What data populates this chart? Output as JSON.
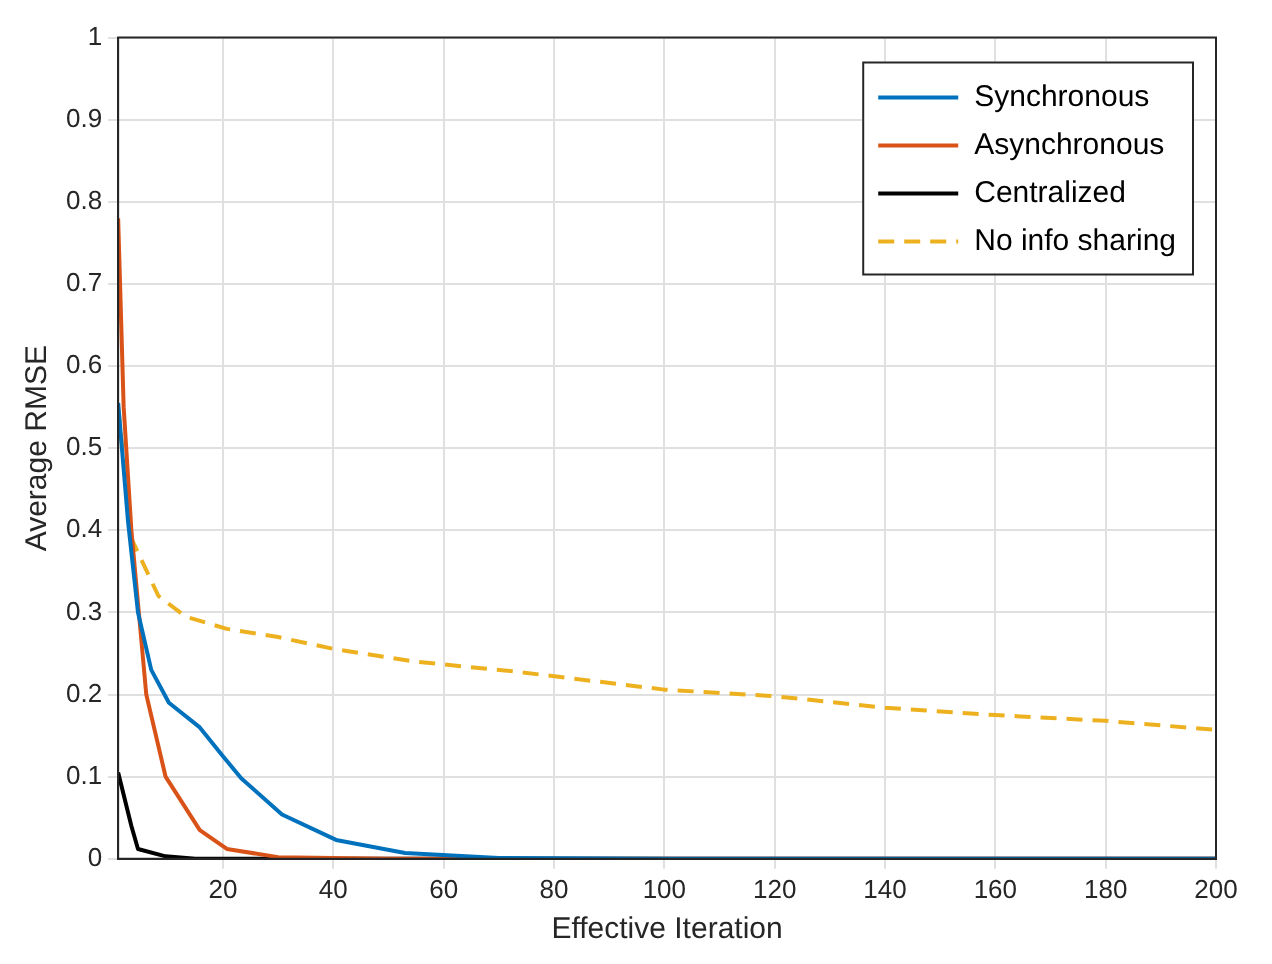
{
  "chart_data": {
    "type": "line",
    "xlabel": "Effective Iteration",
    "ylabel": "Average RMSE",
    "xlim": [
      1,
      200
    ],
    "ylim": [
      0,
      1
    ],
    "xticks": [
      20,
      40,
      60,
      80,
      100,
      120,
      140,
      160,
      180,
      200
    ],
    "yticks": [
      0,
      0.1,
      0.2,
      0.3,
      0.4,
      0.5,
      0.6,
      0.7,
      0.8,
      0.9,
      1
    ],
    "grid": true,
    "legend": "top right",
    "marker": "none",
    "series": [
      {
        "name": "Synchronous",
        "color": "#0072bd",
        "line_style": "solid",
        "x": [
          1,
          2.8,
          4.6,
          7,
          10.2,
          15.8,
          20,
          23.3,
          30.7,
          40.5,
          53,
          70,
          100,
          150,
          200
        ],
        "values": [
          0.555,
          0.41,
          0.3,
          0.23,
          0.19,
          0.16,
          0.125,
          0.098,
          0.054,
          0.023,
          0.007,
          0.001,
          0,
          0,
          0
        ]
      },
      {
        "name": "Asynchronous",
        "color": "#d95319",
        "line_style": "solid",
        "x": [
          1,
          2,
          3.4,
          6.1,
          9.6,
          15.8,
          20.7,
          30,
          50,
          100,
          200
        ],
        "values": [
          0.78,
          0.55,
          0.4,
          0.2,
          0.1,
          0.035,
          0.012,
          0.002,
          0,
          0,
          0
        ]
      },
      {
        "name": "Centralized",
        "color": "#000000",
        "line_style": "solid",
        "x": [
          1,
          3.4,
          4.6,
          9.6,
          15,
          50,
          100,
          200
        ],
        "values": [
          0.105,
          0.04,
          0.012,
          0.003,
          0,
          0,
          0,
          0
        ]
      },
      {
        "name": "No info sharing",
        "color": "#edb120",
        "line_style": "dashed",
        "x": [
          1,
          3.4,
          8.3,
          13.2,
          20.7,
          30,
          40.5,
          55,
          73,
          100,
          120,
          140,
          160,
          180,
          200
        ],
        "values": [
          0.55,
          0.39,
          0.32,
          0.295,
          0.28,
          0.27,
          0.255,
          0.24,
          0.228,
          0.206,
          0.198,
          0.184,
          0.175,
          0.168,
          0.157
        ]
      }
    ]
  }
}
